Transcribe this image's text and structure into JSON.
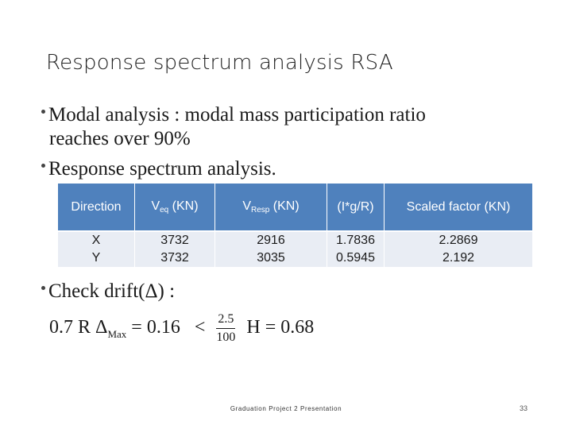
{
  "slide": {
    "title": "Response spectrum analysis RSA",
    "bullets": [
      {
        "line1": "Modal analysis : modal mass participation ratio",
        "line2": "reaches over 90%"
      },
      {
        "line1": "Response spectrum analysis."
      },
      {
        "line1": "Check drift(Δ) :"
      }
    ],
    "table": {
      "headers": {
        "direction": "Direction",
        "veq_main": "V",
        "veq_sub": "eq",
        "veq_unit": " (KN)",
        "vresp_main": "V",
        "vresp_sub": "Resp",
        "vresp_unit": " (KN)",
        "ratio": "(I*g/R)",
        "scaled": "Scaled factor (KN)"
      },
      "rows": [
        {
          "direction": "X",
          "veq": "3732",
          "vresp": "2916",
          "ratio": "1.7836",
          "scaled": "2.2869"
        },
        {
          "direction": "Y",
          "veq": "3732",
          "vresp": "3035",
          "ratio": "0.5945",
          "scaled": "2.192"
        }
      ]
    },
    "formula": {
      "left": "0.7 R Δ",
      "left_sub": "Max",
      "left_eq": " = 0.16",
      "op": "<",
      "frac_num": "2.5",
      "frac_den": "100",
      "right": "H = 0.68"
    },
    "footer": "Graduation Project 2 Presentation",
    "page_number": "33"
  }
}
